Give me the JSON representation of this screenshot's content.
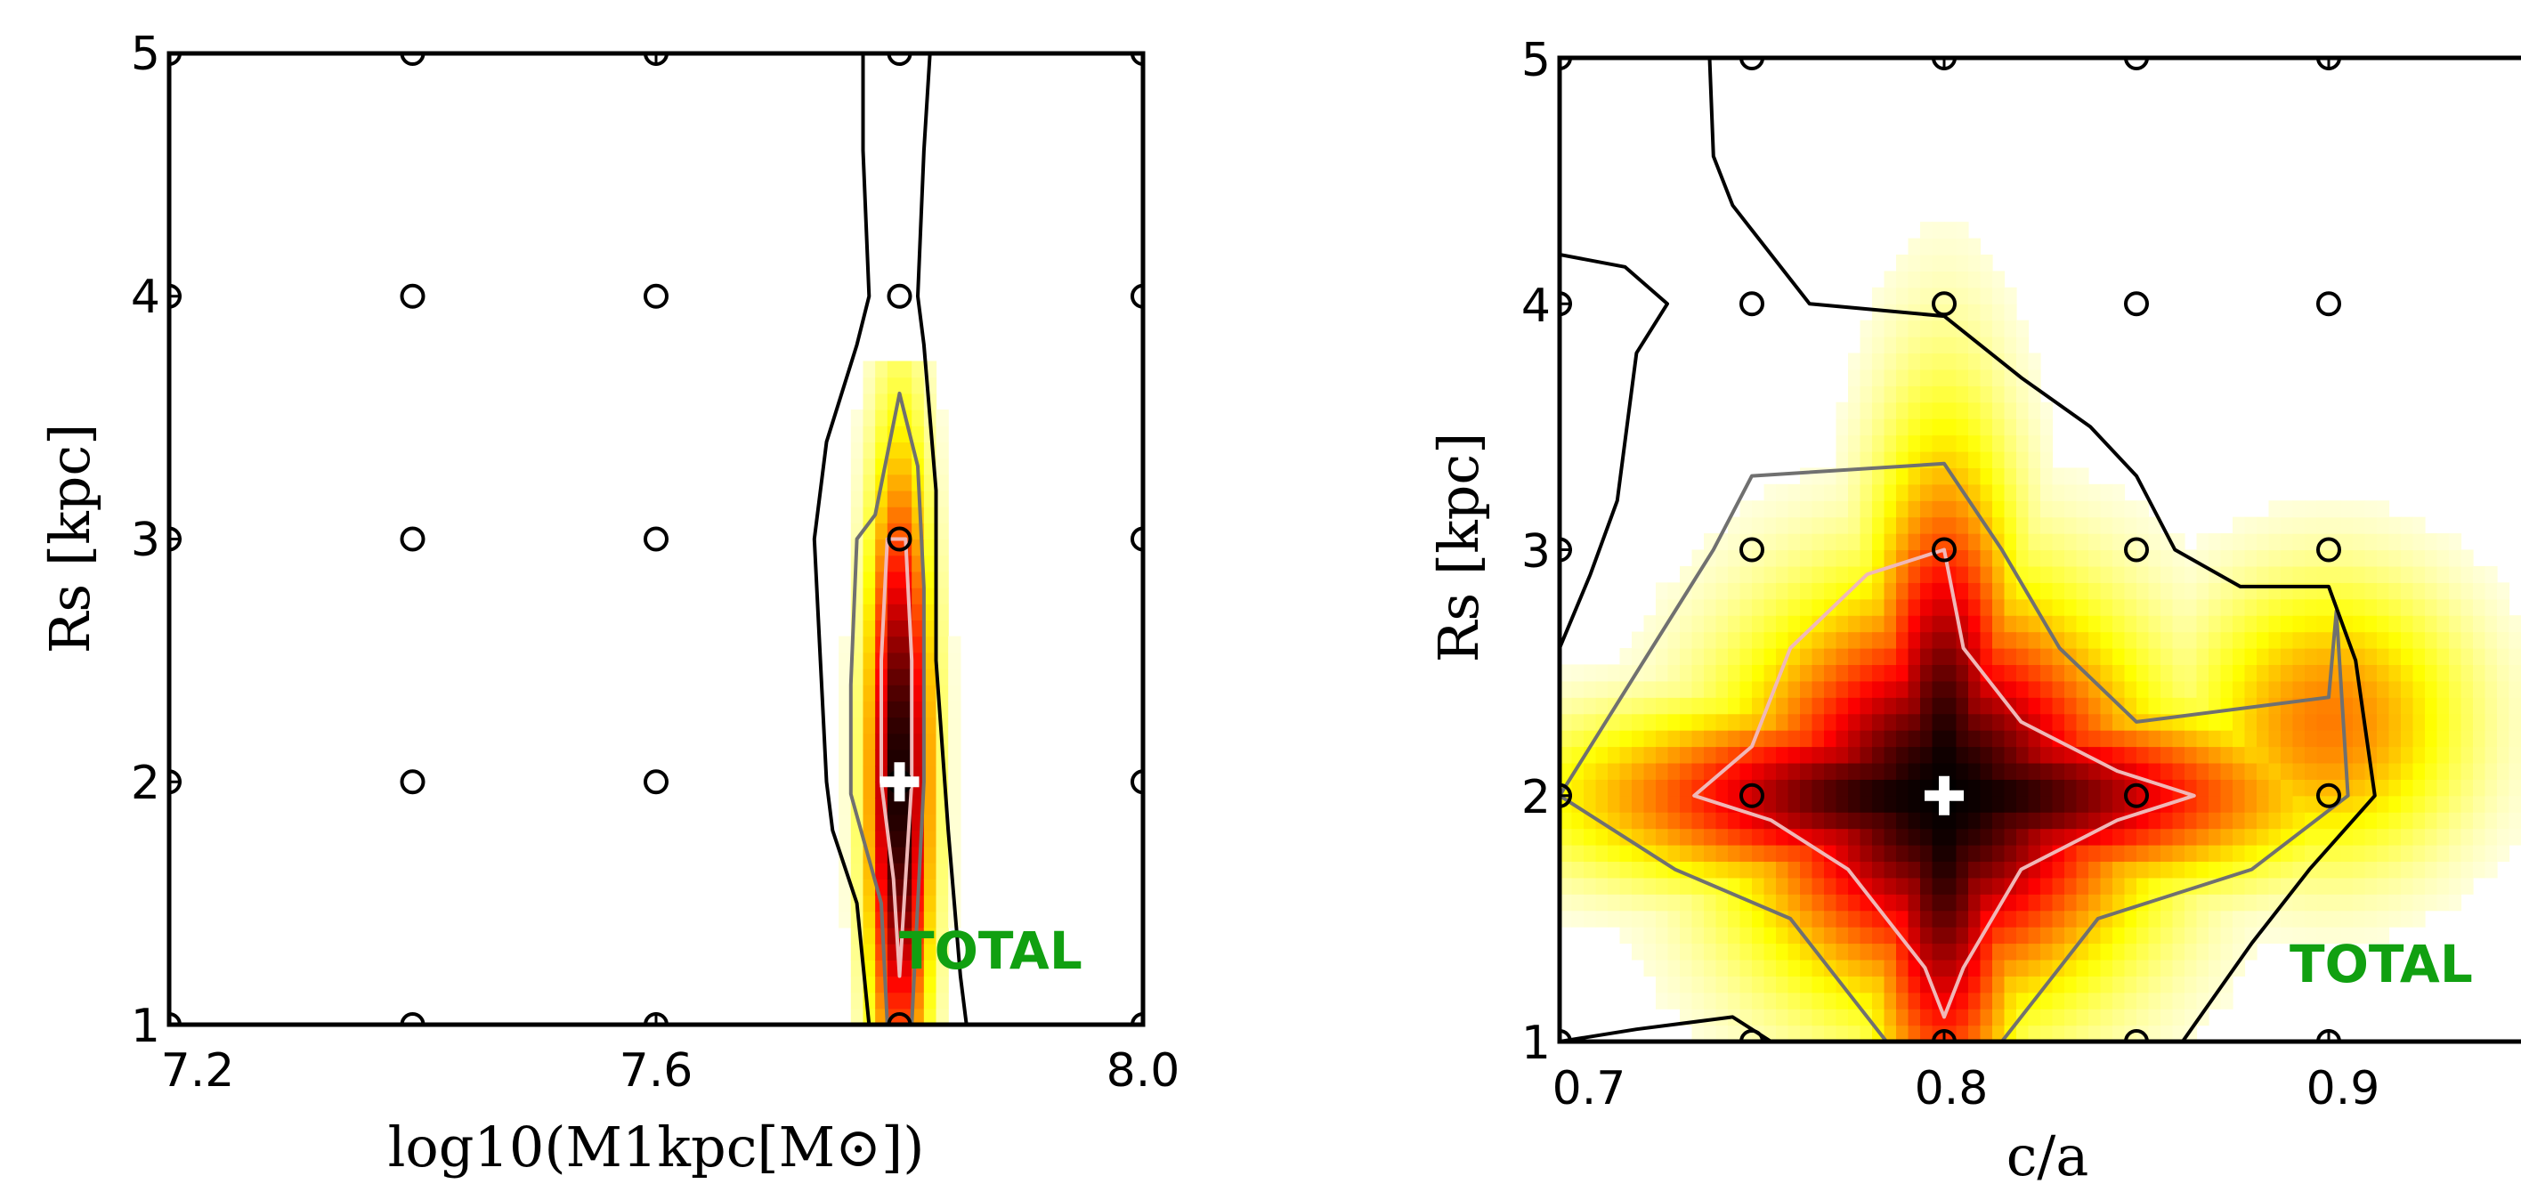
{
  "colors": {
    "total": "#11a011",
    "grid_marker": "#000000",
    "best_fit": "#ffffff"
  },
  "chart_data": [
    {
      "type": "heatmap",
      "xlabel": "log10(M1kpc[M⊙])",
      "ylabel": "Rs [kpc]",
      "xlim": [
        7.2,
        8.0
      ],
      "ylim": [
        1,
        5
      ],
      "xticks": [
        "7.2",
        "7.6",
        "8.0"
      ],
      "yticks": [
        "1",
        "2",
        "3",
        "4",
        "5"
      ],
      "grid_points": {
        "x": [
          7.2,
          7.4,
          7.6,
          7.8,
          8.0
        ],
        "y": [
          1,
          2,
          3,
          4,
          5
        ]
      },
      "best_fit": {
        "x": 7.8,
        "y": 2
      },
      "annotation": "TOTAL",
      "colormap": "hot_r",
      "likelihood_shape": {
        "center": {
          "x": 7.8,
          "y": 2.0
        },
        "sigma_x": 0.018,
        "sigma_y": 0.9,
        "y_extent": [
          1.0,
          3.7
        ]
      },
      "contours": [
        {
          "level": "inner",
          "color": "#f0b8b8",
          "points": [
            [
              7.79,
              3.0
            ],
            [
              7.805,
              3.0
            ],
            [
              7.81,
              2.5
            ],
            [
              7.81,
              2.0
            ],
            [
              7.805,
              1.6
            ],
            [
              7.8,
              1.2
            ],
            [
              7.795,
              1.6
            ],
            [
              7.785,
              2.0
            ],
            [
              7.785,
              2.5
            ]
          ]
        },
        {
          "level": "middle",
          "color": "#707070",
          "points": [
            [
              7.78,
              3.1
            ],
            [
              7.8,
              3.6
            ],
            [
              7.815,
              3.3
            ],
            [
              7.82,
              2.8
            ],
            [
              7.82,
              2.0
            ],
            [
              7.815,
              1.5
            ],
            [
              7.81,
              1.0
            ],
            [
              7.79,
              1.0
            ],
            [
              7.785,
              1.5
            ],
            [
              7.76,
              1.95
            ],
            [
              7.76,
              2.4
            ],
            [
              7.765,
              3.0
            ]
          ]
        },
        {
          "level": "outer",
          "color": "#000000",
          "points": [
            [
              7.77,
              5.0
            ],
            [
              7.77,
              4.6
            ],
            [
              7.775,
              4.0
            ],
            [
              7.765,
              3.8
            ],
            [
              7.74,
              3.4
            ],
            [
              7.73,
              3.0
            ],
            [
              7.735,
              2.5
            ],
            [
              7.74,
              2.0
            ],
            [
              7.745,
              1.8
            ],
            [
              7.765,
              1.5
            ],
            [
              7.775,
              1.0
            ]
          ]
        },
        {
          "level": "outer",
          "color": "#000000",
          "points": [
            [
              7.825,
              5.0
            ],
            [
              7.82,
              4.6
            ],
            [
              7.815,
              4.0
            ],
            [
              7.82,
              3.8
            ],
            [
              7.83,
              3.2
            ],
            [
              7.83,
              2.5
            ],
            [
              7.84,
              1.8
            ],
            [
              7.85,
              1.2
            ],
            [
              7.855,
              1.0
            ]
          ]
        }
      ]
    },
    {
      "type": "heatmap",
      "xlabel": "c/a",
      "ylabel": "Rs [kpc]",
      "xlim": [
        0.7,
        0.95
      ],
      "ylim": [
        1,
        5
      ],
      "xticks": [
        "0.7",
        "0.8",
        "0.9"
      ],
      "yticks": [
        "1",
        "2",
        "3",
        "4",
        "5"
      ],
      "grid_points": {
        "x": [
          0.7,
          0.75,
          0.8,
          0.85,
          0.9
        ],
        "y": [
          1,
          2,
          3,
          4,
          5
        ]
      },
      "best_fit": {
        "x": 0.8,
        "y": 2
      },
      "annotation": "TOTAL",
      "colormap": "hot_r",
      "likelihood_shape": {
        "center": {
          "x": 0.8,
          "y": 2.0
        },
        "components": [
          {
            "sx": 0.06,
            "sy": 0.25
          },
          {
            "sx": 0.014,
            "sy": 0.9
          },
          {
            "sx": 0.035,
            "sy": 0.55
          }
        ],
        "right_lobe": {
          "x": 0.9,
          "y": 2.3,
          "sx": 0.025,
          "sy": 0.4
        }
      },
      "contours": [
        {
          "level": "inner",
          "color": "#f0b8b8",
          "points": [
            [
              0.8,
              3.0
            ],
            [
              0.78,
              2.9
            ],
            [
              0.76,
              2.6
            ],
            [
              0.75,
              2.2
            ],
            [
              0.735,
              2.0
            ],
            [
              0.755,
              1.9
            ],
            [
              0.775,
              1.7
            ],
            [
              0.795,
              1.3
            ],
            [
              0.8,
              1.1
            ],
            [
              0.805,
              1.3
            ],
            [
              0.82,
              1.7
            ],
            [
              0.845,
              1.9
            ],
            [
              0.865,
              2.0
            ],
            [
              0.845,
              2.1
            ],
            [
              0.82,
              2.3
            ],
            [
              0.805,
              2.6
            ]
          ]
        },
        {
          "level": "middle",
          "color": "#707070",
          "points": [
            [
              0.75,
              3.3
            ],
            [
              0.8,
              3.35
            ],
            [
              0.815,
              3.0
            ],
            [
              0.83,
              2.6
            ],
            [
              0.85,
              2.3
            ],
            [
              0.9,
              2.4
            ],
            [
              0.902,
              2.75
            ],
            [
              0.905,
              2.0
            ],
            [
              0.88,
              1.7
            ],
            [
              0.84,
              1.5
            ],
            [
              0.825,
              1.2
            ],
            [
              0.815,
              1.0
            ],
            [
              0.785,
              1.0
            ],
            [
              0.775,
              1.2
            ],
            [
              0.76,
              1.5
            ],
            [
              0.73,
              1.7
            ],
            [
              0.7,
              2.0
            ],
            [
              0.72,
              2.5
            ],
            [
              0.74,
              3.0
            ]
          ]
        },
        {
          "level": "outer",
          "color": "#000000",
          "points": [
            [
              0.739,
              5.0
            ],
            [
              0.74,
              4.6
            ],
            [
              0.745,
              4.4
            ],
            [
              0.75,
              4.3
            ],
            [
              0.765,
              4.0
            ],
            [
              0.8,
              3.95
            ],
            [
              0.82,
              3.7
            ],
            [
              0.838,
              3.5
            ],
            [
              0.85,
              3.3
            ],
            [
              0.86,
              3.0
            ],
            [
              0.877,
              2.85
            ],
            [
              0.9,
              2.85
            ],
            [
              0.907,
              2.55
            ],
            [
              0.912,
              2.0
            ],
            [
              0.895,
              1.7
            ],
            [
              0.88,
              1.4
            ],
            [
              0.862,
              1.0
            ]
          ]
        },
        {
          "level": "outer",
          "color": "#000000",
          "points": [
            [
              0.7,
              4.2
            ],
            [
              0.717,
              4.15
            ],
            [
              0.728,
              4.0
            ],
            [
              0.72,
              3.8
            ],
            [
              0.715,
              3.2
            ],
            [
              0.708,
              2.9
            ],
            [
              0.7,
              2.6
            ]
          ]
        },
        {
          "level": "outer",
          "color": "#000000",
          "points": [
            [
              0.7,
              1.0
            ],
            [
              0.72,
              1.05
            ],
            [
              0.745,
              1.1
            ],
            [
              0.755,
              1.0
            ]
          ]
        }
      ]
    }
  ]
}
